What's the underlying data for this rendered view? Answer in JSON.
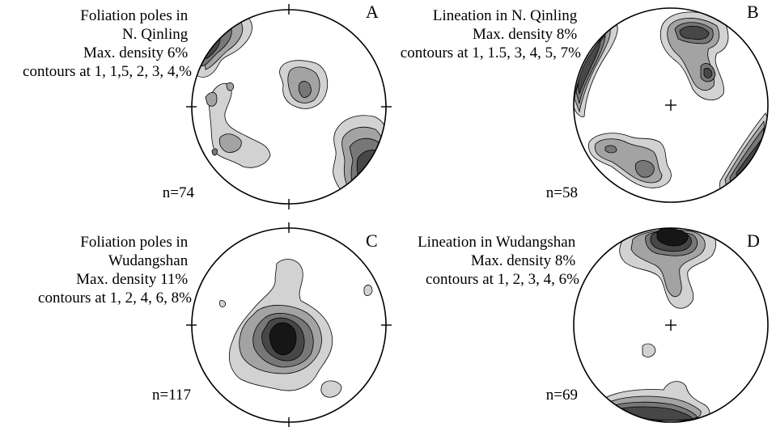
{
  "panels": [
    {
      "letter": "A",
      "caption": [
        "Foliation poles in",
        "N. Qinling",
        "Max. density 6%",
        "contours at 1, 1,5, 2, 3, 4,%"
      ],
      "n": "n=74"
    },
    {
      "letter": "B",
      "caption": [
        "Lineation in N. Qinling",
        "Max. density 8%",
        "contours at 1, 1.5, 3, 4, 5, 7%"
      ],
      "n": "n=58"
    },
    {
      "letter": "C",
      "caption": [
        "Foliation poles in",
        "Wudangshan",
        "Max. density 11%",
        "contours at 1, 2, 4, 6, 8%"
      ],
      "n": "n=117"
    },
    {
      "letter": "D",
      "caption": [
        "Lineation in Wudangshan",
        "Max. density 8%",
        "contours at 1, 2, 3, 4, 6%"
      ],
      "n": "n=69"
    }
  ],
  "colors": {
    "level_1": "#d2d2d2",
    "level_2": "#a3a3a3",
    "level_3": "#777777",
    "level_4": "#474747",
    "level_5": "#161616"
  }
}
